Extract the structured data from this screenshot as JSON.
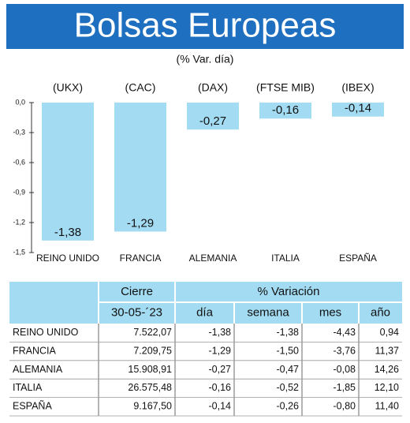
{
  "chart_data": {
    "type": "bar",
    "title": "Bolsas Europeas",
    "subtitle": "(% Var. día)",
    "index_labels": [
      "(UKX)",
      "(CAC)",
      "(DAX)",
      "(FTSE MIB)",
      "(IBEX)"
    ],
    "categories": [
      "REINO UNIDO",
      "FRANCIA",
      "ALEMANIA",
      "ITALIA",
      "ESPAÑA"
    ],
    "values": [
      -1.38,
      -1.29,
      -0.27,
      -0.16,
      -0.14
    ],
    "value_labels": [
      "-1,38",
      "-1,29",
      "-0,27",
      "-0,16",
      "-0,14"
    ],
    "color": "#a3dcf2",
    "ylim": [
      -1.5,
      0
    ],
    "yticks": [
      {
        "value": 0,
        "label": "0,0"
      },
      {
        "value": -0.3,
        "label": "-0,3"
      },
      {
        "value": -0.6,
        "label": "-0,6"
      },
      {
        "value": -0.9,
        "label": "-0,9"
      },
      {
        "value": -1.2,
        "label": "-1,2"
      },
      {
        "value": -1.5,
        "label": "-1,5"
      }
    ]
  },
  "table": {
    "header": {
      "group_1": "Cierre",
      "group_2": "% Variación",
      "date": "30-05-´23",
      "columns": [
        "día",
        "semana",
        "mes",
        "año"
      ]
    },
    "rows": [
      [
        "REINO UNIDO",
        "7.522,07",
        "-1,38",
        "-1,38",
        "-4,43",
        "0,94"
      ],
      [
        "FRANCIA",
        "7.209,75",
        "-1,29",
        "-1,50",
        "-3,76",
        "11,37"
      ],
      [
        "ALEMANIA",
        "15.908,91",
        "-0,27",
        "-0,47",
        "-0,08",
        "14,26"
      ],
      [
        "ITALIA",
        "26.575,48",
        "-0,16",
        "-0,52",
        "-1,85",
        "12,10"
      ],
      [
        "ESPAÑA",
        "9.167,50",
        "-0,14",
        "-0,26",
        "-0,80",
        "11,40"
      ]
    ]
  }
}
